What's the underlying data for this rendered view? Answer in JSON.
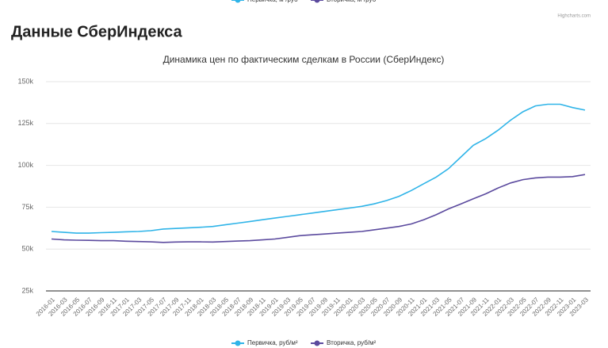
{
  "page_title": "Данные СберИндекса",
  "credits": "Highcharts.com",
  "top_legend": [
    "Первичка, м²/руб",
    "Вторичка, м²/руб"
  ],
  "chart_data": {
    "type": "line",
    "title": "Динамика цен по фактическим сделкам в России (СберИндекс)",
    "categories": [
      "2016-01",
      "2016-03",
      "2016-05",
      "2016-07",
      "2016-09",
      "2016-11",
      "2017-01",
      "2017-03",
      "2017-05",
      "2017-07",
      "2017-09",
      "2017-11",
      "2018-01",
      "2018-03",
      "2018-05",
      "2018-07",
      "2018-09",
      "2018-11",
      "2019-01",
      "2019-03",
      "2019-05",
      "2019-07",
      "2019-09",
      "2019-11",
      "2020-01",
      "2020-03",
      "2020-05",
      "2020-07",
      "2020-09",
      "2020-11",
      "2021-01",
      "2021-03",
      "2021-05",
      "2021-07",
      "2021-09",
      "2021-11",
      "2022-01",
      "2022-03",
      "2022-05",
      "2022-07",
      "2022-09",
      "2022-11",
      "2023-01",
      "2023-03"
    ],
    "series": [
      {
        "name": "Первичка, руб/м²",
        "color": "#2fb4e8",
        "values": [
          60500,
          60000,
          59500,
          59500,
          59800,
          60000,
          60300,
          60500,
          61000,
          62000,
          62300,
          62700,
          63000,
          63500,
          64500,
          65500,
          66500,
          67500,
          68500,
          69500,
          70500,
          71500,
          72500,
          73500,
          74500,
          75500,
          77000,
          79000,
          81500,
          85000,
          89000,
          93000,
          98000,
          105000,
          112000,
          116000,
          121000,
          127000,
          132000,
          135500,
          136500,
          136500,
          134500,
          133000
        ]
      },
      {
        "name": "Вторичка, руб/м²",
        "color": "#5b4a9e",
        "values": [
          56000,
          55500,
          55300,
          55200,
          55000,
          55000,
          54700,
          54500,
          54300,
          54000,
          54200,
          54300,
          54300,
          54200,
          54500,
          54800,
          55000,
          55500,
          56000,
          57000,
          58000,
          58500,
          59000,
          59500,
          60000,
          60500,
          61500,
          62500,
          63500,
          65000,
          67500,
          70500,
          74000,
          77000,
          80000,
          83000,
          86500,
          89500,
          91500,
          92500,
          93000,
          93000,
          93300,
          94500
        ]
      }
    ],
    "ylim": [
      25000,
      150000
    ],
    "yticks": [
      {
        "value": 25000,
        "label": "25k"
      },
      {
        "value": 50000,
        "label": "50k"
      },
      {
        "value": 75000,
        "label": "75k"
      },
      {
        "value": 100000,
        "label": "100k"
      },
      {
        "value": 125000,
        "label": "125k"
      },
      {
        "value": 150000,
        "label": "150k"
      }
    ],
    "grid": true
  }
}
